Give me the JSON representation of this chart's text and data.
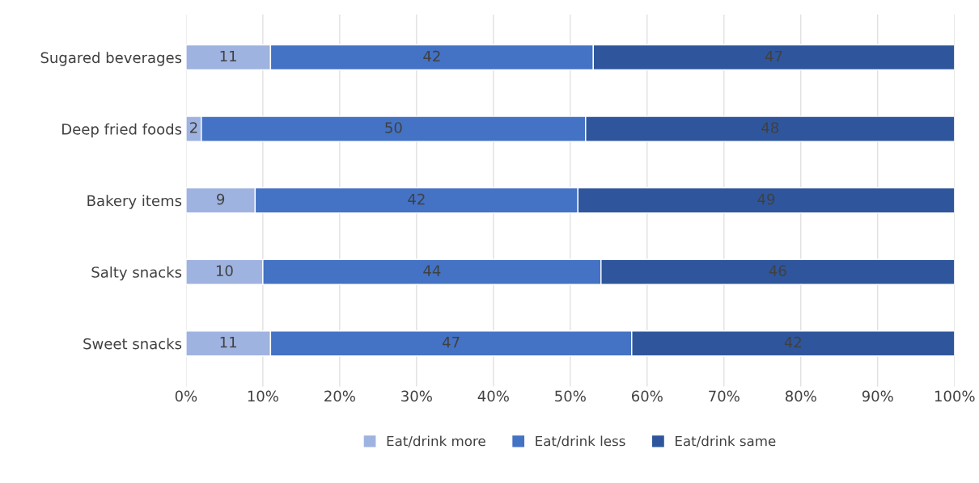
{
  "chart_data": {
    "type": "bar",
    "orientation": "horizontal",
    "stacked": true,
    "categories": [
      "Sugared beverages",
      "Deep fried foods",
      "Bakery items",
      "Salty snacks",
      "Sweet snacks"
    ],
    "series": [
      {
        "name": "Eat/drink more",
        "color": "#9fb3e0",
        "values": [
          11,
          2,
          9,
          10,
          11
        ]
      },
      {
        "name": "Eat/drink less",
        "color": "#4472c4",
        "values": [
          42,
          50,
          42,
          44,
          47
        ]
      },
      {
        "name": "Eat/drink same",
        "color": "#2f569c",
        "values": [
          47,
          48,
          49,
          46,
          42
        ]
      }
    ],
    "xlim": [
      0,
      100
    ],
    "xticks": [
      {
        "value": 0,
        "label": "0%"
      },
      {
        "value": 10,
        "label": "10%"
      },
      {
        "value": 20,
        "label": "20%"
      },
      {
        "value": 30,
        "label": "30%"
      },
      {
        "value": 40,
        "label": "40%"
      },
      {
        "value": 50,
        "label": "50%"
      },
      {
        "value": 60,
        "label": "60%"
      },
      {
        "value": 70,
        "label": "70%"
      },
      {
        "value": 80,
        "label": "80%"
      },
      {
        "value": 90,
        "label": "90%"
      },
      {
        "value": 100,
        "label": "100%"
      }
    ],
    "grid": "x",
    "legend": "bottom",
    "data_labels": true
  }
}
